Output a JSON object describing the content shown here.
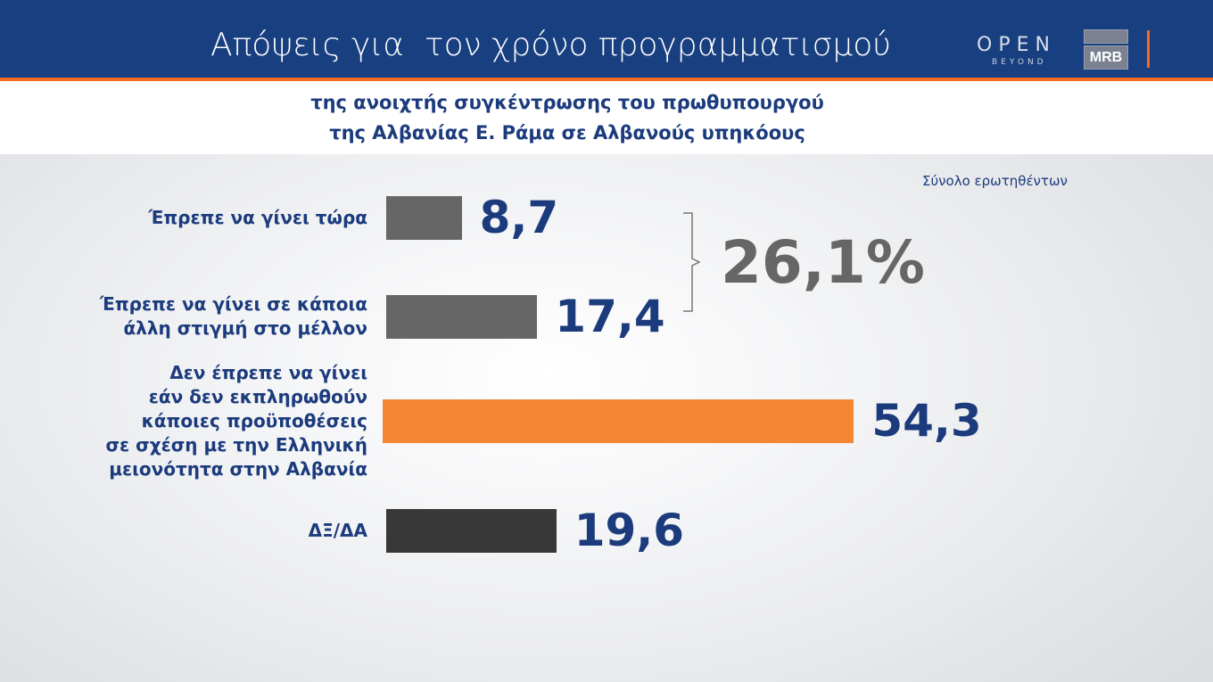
{
  "header": {
    "title": "Απόψεις για  τον χρόνο προγραμματισμού",
    "logo_open": "OPEN",
    "logo_beyond": "BEYOND",
    "logo_mrb": "MRB"
  },
  "colors": {
    "header": "#183f80",
    "accent": "#f26b21",
    "text": "#1b3b7d",
    "bar_grey": "#666666",
    "bar_dark": "#383838",
    "bar_orange": "#f58634"
  },
  "chart_data": {
    "type": "bar",
    "orientation": "horizontal",
    "subtitle_lines": [
      "της ανοιχτής συγκέντρωσης του πρωθυπουργού",
      "της Αλβανίας Ε. Ράμα σε Αλβανούς υπηκόους"
    ],
    "note": "Σύνολο ερωτηθέντων",
    "categories": [
      [
        "Έπρεπε να γίνει τώρα"
      ],
      [
        "Έπρεπε να γίνει σε κάποια",
        "άλλη στιγμή στο μέλλον"
      ],
      [
        "Δεν έπρεπε να γίνει",
        "εάν δεν εκπληρωθούν",
        "κάποιες προϋποθέσεις",
        "σε σχέση με την Ελληνική",
        "μειονότητα στην Αλβανία"
      ],
      [
        "ΔΞ/ΔΑ"
      ]
    ],
    "values": [
      8.7,
      17.4,
      54.3,
      19.6
    ],
    "value_labels": [
      "8,7",
      "17,4",
      "54,3",
      "19,6"
    ],
    "bar_colors": [
      "#666666",
      "#666666",
      "#f58634",
      "#383838"
    ],
    "group_total": {
      "label": "26,1%",
      "covers": [
        0,
        1
      ]
    }
  }
}
